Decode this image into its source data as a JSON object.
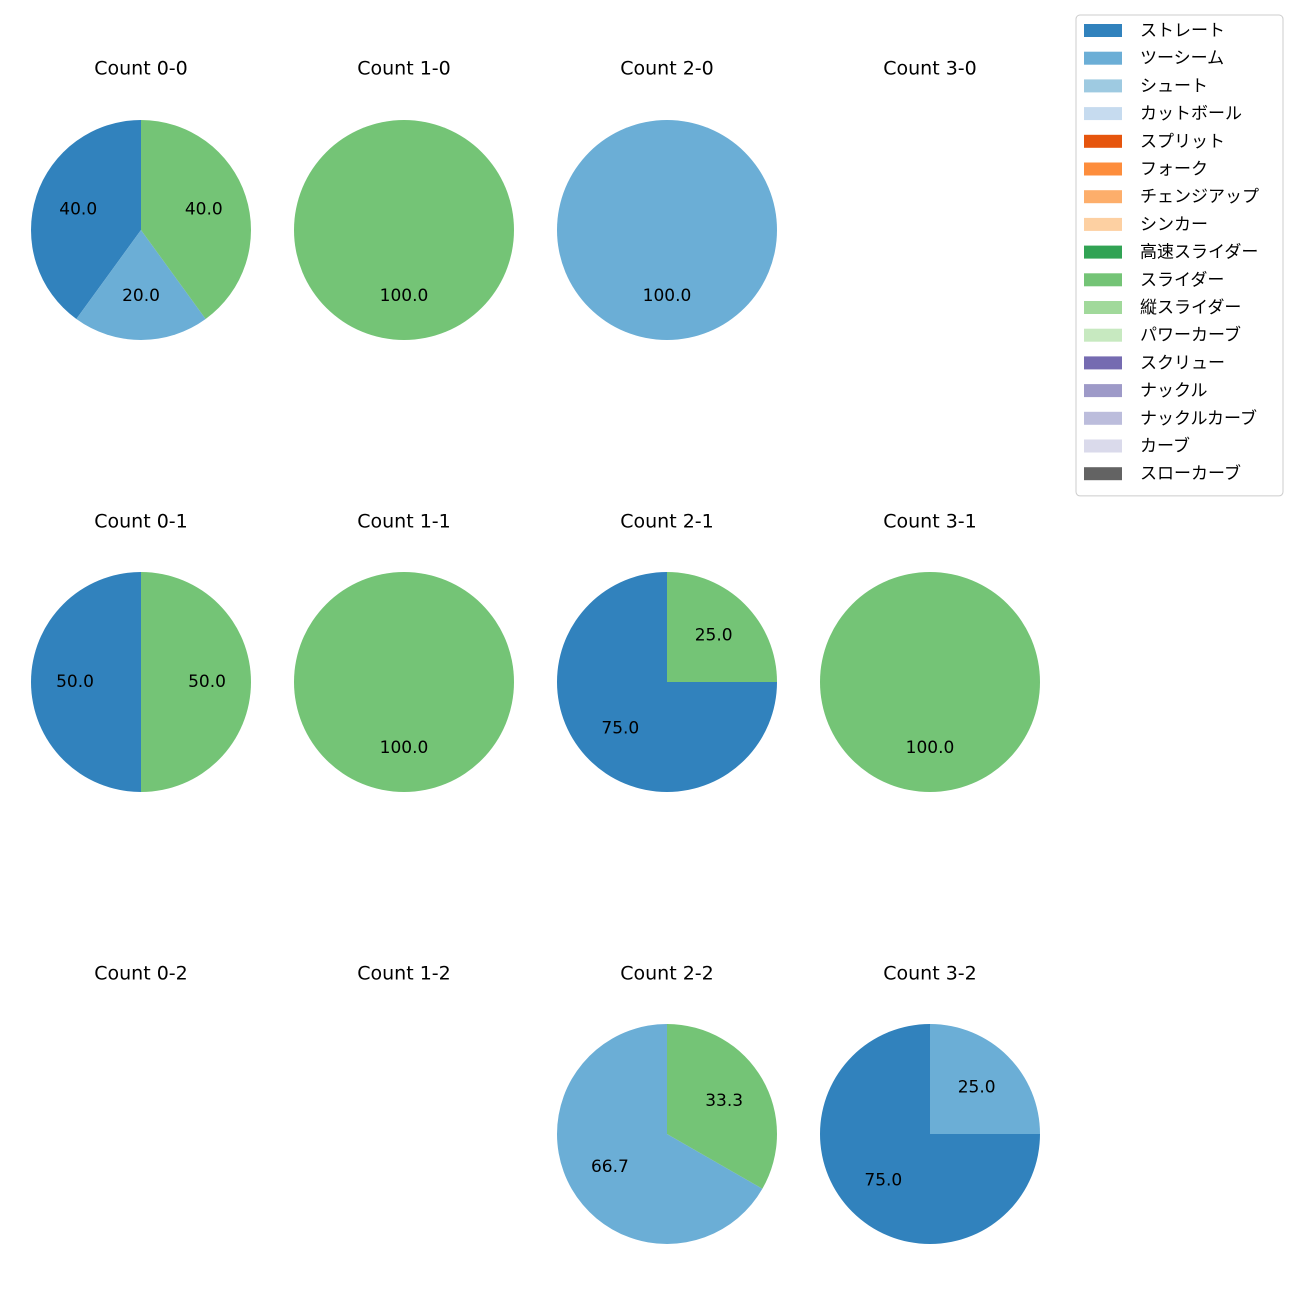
{
  "chart_data": {
    "type": "pie",
    "legend_position": "top-right",
    "legend": [
      {
        "name": "ストレート",
        "color": "#3182bd"
      },
      {
        "name": "ツーシーム",
        "color": "#6baed6"
      },
      {
        "name": "シュート",
        "color": "#9ecae1"
      },
      {
        "name": "カットボール",
        "color": "#c6dbef"
      },
      {
        "name": "スプリット",
        "color": "#e6550d"
      },
      {
        "name": "フォーク",
        "color": "#fd8d3c"
      },
      {
        "name": "チェンジアップ",
        "color": "#fdae6b"
      },
      {
        "name": "シンカー",
        "color": "#fdd0a2"
      },
      {
        "name": "高速スライダー",
        "color": "#31a354"
      },
      {
        "name": "スライダー",
        "color": "#74c476"
      },
      {
        "name": "縦スライダー",
        "color": "#a1d99b"
      },
      {
        "name": "パワーカーブ",
        "color": "#c7e9c0"
      },
      {
        "name": "スクリュー",
        "color": "#756bb1"
      },
      {
        "name": "ナックル",
        "color": "#9e9ac8"
      },
      {
        "name": "ナックルカーブ",
        "color": "#bcbddc"
      },
      {
        "name": "カーブ",
        "color": "#dadaeb"
      },
      {
        "name": "スローカーブ",
        "color": "#636363"
      }
    ],
    "panels": [
      {
        "title": "Count 0-0",
        "row": 0,
        "col": 0,
        "slices": [
          {
            "pitch": "ストレート",
            "value": 40.0,
            "label": "40.0"
          },
          {
            "pitch": "ツーシーム",
            "value": 20.0,
            "label": "20.0"
          },
          {
            "pitch": "スライダー",
            "value": 40.0,
            "label": "40.0"
          }
        ]
      },
      {
        "title": "Count 1-0",
        "row": 0,
        "col": 1,
        "slices": [
          {
            "pitch": "スライダー",
            "value": 100.0,
            "label": "100.0"
          }
        ]
      },
      {
        "title": "Count 2-0",
        "row": 0,
        "col": 2,
        "slices": [
          {
            "pitch": "ツーシーム",
            "value": 100.0,
            "label": "100.0"
          }
        ]
      },
      {
        "title": "Count 3-0",
        "row": 0,
        "col": 3,
        "slices": []
      },
      {
        "title": "Count 0-1",
        "row": 1,
        "col": 0,
        "slices": [
          {
            "pitch": "ストレート",
            "value": 50.0,
            "label": "50.0"
          },
          {
            "pitch": "スライダー",
            "value": 50.0,
            "label": "50.0"
          }
        ]
      },
      {
        "title": "Count 1-1",
        "row": 1,
        "col": 1,
        "slices": [
          {
            "pitch": "スライダー",
            "value": 100.0,
            "label": "100.0"
          }
        ]
      },
      {
        "title": "Count 2-1",
        "row": 1,
        "col": 2,
        "slices": [
          {
            "pitch": "ストレート",
            "value": 75.0,
            "label": "75.0"
          },
          {
            "pitch": "スライダー",
            "value": 25.0,
            "label": "25.0"
          }
        ]
      },
      {
        "title": "Count 3-1",
        "row": 1,
        "col": 3,
        "slices": [
          {
            "pitch": "スライダー",
            "value": 100.0,
            "label": "100.0"
          }
        ]
      },
      {
        "title": "Count 0-2",
        "row": 2,
        "col": 0,
        "slices": []
      },
      {
        "title": "Count 1-2",
        "row": 2,
        "col": 1,
        "slices": []
      },
      {
        "title": "Count 2-2",
        "row": 2,
        "col": 2,
        "slices": [
          {
            "pitch": "ツーシーム",
            "value": 66.7,
            "label": "66.7"
          },
          {
            "pitch": "スライダー",
            "value": 33.3,
            "label": "33.3"
          }
        ]
      },
      {
        "title": "Count 3-2",
        "row": 2,
        "col": 3,
        "slices": [
          {
            "pitch": "ストレート",
            "value": 75.0,
            "label": "75.0"
          },
          {
            "pitch": "ツーシーム",
            "value": 25.0,
            "label": "25.0"
          }
        ]
      }
    ]
  }
}
